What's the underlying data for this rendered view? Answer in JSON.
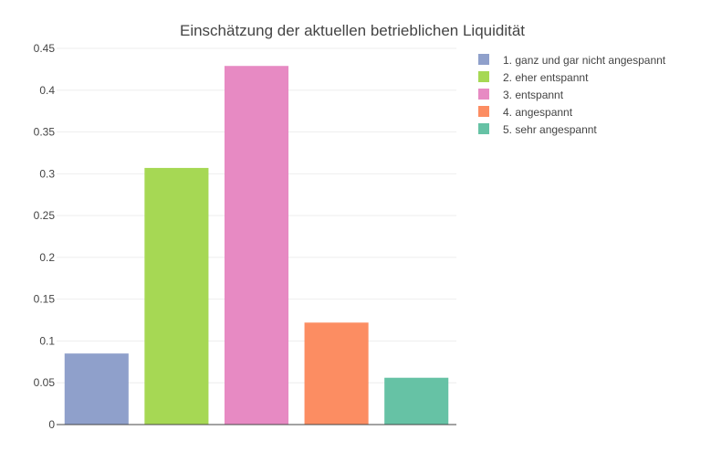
{
  "chart_data": {
    "type": "bar",
    "title": "Einschätzung der aktuellen betrieblichen Liquidität",
    "xlabel": "",
    "ylabel": "",
    "ylim": [
      0,
      0.45
    ],
    "yticks": [
      0,
      0.05,
      0.1,
      0.15,
      0.2,
      0.25,
      0.3,
      0.35,
      0.4,
      0.45
    ],
    "ytick_labels": [
      "0",
      "0.05",
      "0.1",
      "0.15",
      "0.2",
      "0.25",
      "0.3",
      "0.35",
      "0.4",
      "0.45"
    ],
    "grid": true,
    "legend_position": "top-right",
    "series": [
      {
        "name": "1. ganz und gar nicht angespannt",
        "value": 0.085,
        "color": "#8fa0cb"
      },
      {
        "name": "2. eher entspannt",
        "value": 0.307,
        "color": "#a6d854"
      },
      {
        "name": "3. entspannt",
        "value": 0.429,
        "color": "#e78ac3"
      },
      {
        "name": "4. angespannt",
        "value": 0.122,
        "color": "#fc8d62"
      },
      {
        "name": "5. sehr angespannt",
        "value": 0.056,
        "color": "#66c2a5"
      }
    ]
  }
}
